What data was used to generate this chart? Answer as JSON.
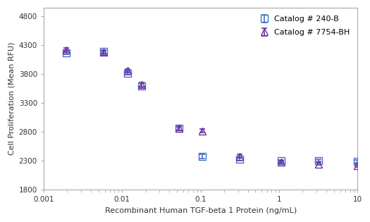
{
  "title": "",
  "xlabel": "Recombinant Human TGF-beta 1 Protein (ng/mL)",
  "ylabel": "Cell Proliferation (Mean RFU)",
  "xlim_log": [
    -3,
    1.1
  ],
  "ylim": [
    1800,
    4950
  ],
  "yticks": [
    1800,
    2300,
    2800,
    3300,
    3800,
    4300,
    4800
  ],
  "background_color": "#ffffff",
  "series1": {
    "label": "Catalog # 240-B",
    "color": "#4472c4",
    "marker": "s",
    "x": [
      0.00195,
      0.00586,
      0.01172,
      0.01758,
      0.05273,
      0.10547,
      0.31641,
      1.05469,
      3.16406,
      10.0
    ],
    "y": [
      4175,
      4190,
      3820,
      3600,
      2870,
      2380,
      2330,
      2300,
      2310,
      2290
    ],
    "yerr": [
      30,
      25,
      30,
      40,
      40,
      35,
      25,
      20,
      20,
      25
    ]
  },
  "series2": {
    "label": "Catalog # 7754-BH",
    "color": "#7030a0",
    "marker": "^",
    "x": [
      0.00195,
      0.00586,
      0.01172,
      0.01758,
      0.05273,
      0.10547,
      0.31641,
      1.05469,
      3.16406,
      10.0
    ],
    "y": [
      4220,
      4180,
      3860,
      3620,
      2860,
      2820,
      2380,
      2280,
      2245,
      2220
    ],
    "yerr": [
      35,
      30,
      25,
      35,
      35,
      30,
      30,
      20,
      20,
      20
    ]
  },
  "legend_loc": "upper right",
  "markersize": 7,
  "linewidth": 1.5,
  "capsize": 3,
  "elinewidth": 1.2
}
